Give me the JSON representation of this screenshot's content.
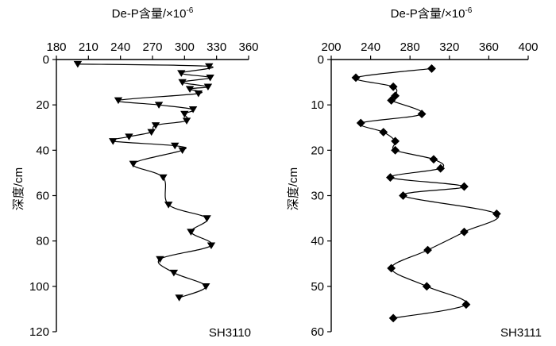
{
  "chart_data": [
    {
      "type": "line",
      "station": "SH3110",
      "xlabel_main": "De-P含量/×10",
      "xlabel_sup": "-6",
      "ylabel": "深度/cm",
      "marker": "triangle-down",
      "xlim": [
        180,
        360
      ],
      "xticks": [
        180,
        210,
        240,
        270,
        300,
        330,
        360
      ],
      "ylim": [
        0,
        120
      ],
      "yticks": [
        0,
        20,
        40,
        60,
        80,
        100,
        120
      ],
      "x_axis_position": "top",
      "y_reversed": true,
      "series": [
        {
          "x": [
            200,
            323,
            297,
            324,
            298,
            322,
            305,
            313,
            238,
            276,
            308,
            300,
            302,
            273,
            269,
            248,
            233,
            291,
            298,
            252,
            280,
            285,
            321,
            306,
            325,
            277,
            290,
            320,
            295
          ],
          "y": [
            2,
            3,
            6,
            8,
            10,
            12,
            13,
            15,
            18,
            20,
            22,
            24,
            27,
            29,
            32,
            34,
            36,
            38,
            40,
            46,
            52,
            64,
            70,
            76,
            82,
            88,
            94,
            100,
            105
          ]
        }
      ]
    },
    {
      "type": "line",
      "station": "SH3111",
      "xlabel_main": "De-P含量/×10",
      "xlabel_sup": "-6",
      "ylabel": "深度/cm",
      "marker": "diamond",
      "xlim": [
        200,
        400
      ],
      "xticks": [
        200,
        240,
        280,
        320,
        360,
        400
      ],
      "ylim": [
        0,
        60
      ],
      "yticks": [
        0,
        10,
        20,
        30,
        40,
        50,
        60
      ],
      "x_axis_position": "top",
      "y_reversed": true,
      "series": [
        {
          "x": [
            302,
            225,
            263,
            265,
            261,
            292,
            230,
            253,
            265,
            265,
            304,
            311,
            260,
            335,
            273,
            368,
            335,
            298,
            261,
            297,
            337,
            263
          ],
          "y": [
            2,
            4,
            6,
            8,
            9,
            12,
            14,
            16,
            18,
            20,
            22,
            24,
            26,
            28,
            30,
            34,
            38,
            42,
            46,
            50,
            54,
            57
          ]
        }
      ]
    }
  ]
}
